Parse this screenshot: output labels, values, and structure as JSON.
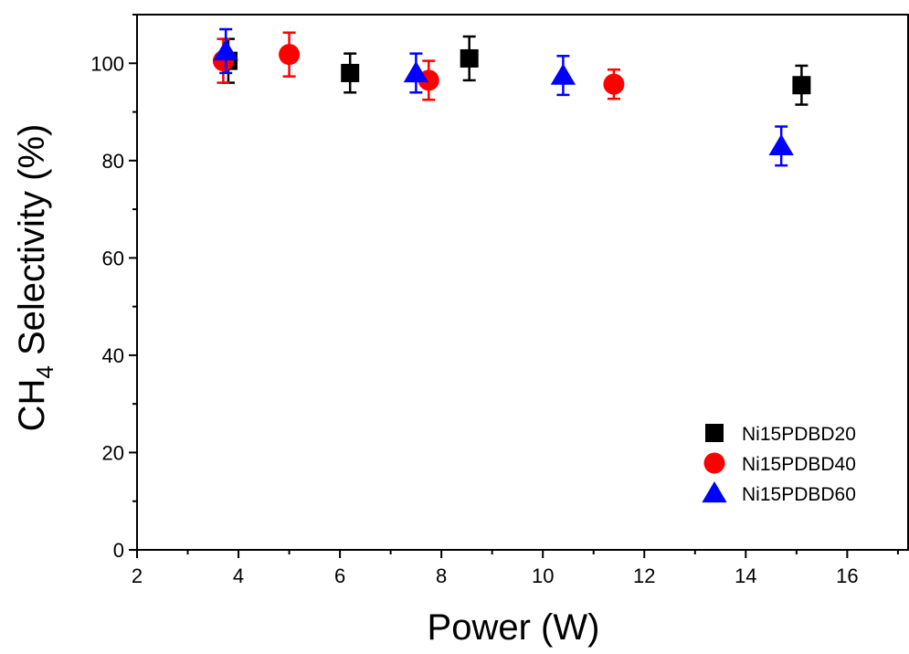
{
  "chart_data": {
    "type": "scatter",
    "xlabel": "Power (W)",
    "ylabel": {
      "prefix": "CH",
      "subscript": "4",
      "suffix": " Selectivity (%)"
    },
    "xlim": [
      2,
      17.2
    ],
    "ylim": [
      0,
      110
    ],
    "xticks": [
      2,
      4,
      6,
      8,
      10,
      12,
      14,
      16
    ],
    "yticks": [
      0,
      20,
      40,
      60,
      80,
      100
    ],
    "grid": false,
    "legend_position": "bottom-right",
    "series": [
      {
        "name": "Ni15PDBD20",
        "marker": "square",
        "color": "#000000",
        "points": [
          {
            "x": 3.8,
            "y": 100.5,
            "err": 4.5
          },
          {
            "x": 6.2,
            "y": 98.0,
            "err": 4.0
          },
          {
            "x": 8.55,
            "y": 101.0,
            "err": 4.5
          },
          {
            "x": 15.1,
            "y": 95.5,
            "err": 4.0
          }
        ]
      },
      {
        "name": "Ni15PDBD40",
        "marker": "circle",
        "color": "#ff0000",
        "points": [
          {
            "x": 3.7,
            "y": 100.5,
            "err": 4.5
          },
          {
            "x": 5.0,
            "y": 101.8,
            "err": 4.5
          },
          {
            "x": 7.75,
            "y": 96.5,
            "err": 4.0
          },
          {
            "x": 11.4,
            "y": 95.7,
            "err": 3.0
          }
        ]
      },
      {
        "name": "Ni15PDBD60",
        "marker": "triangle",
        "color": "#0000ff",
        "points": [
          {
            "x": 3.75,
            "y": 102.5,
            "err": 4.5
          },
          {
            "x": 7.5,
            "y": 98.0,
            "err": 4.0
          },
          {
            "x": 10.4,
            "y": 97.5,
            "err": 4.0
          },
          {
            "x": 14.7,
            "y": 83.0,
            "err": 4.0
          }
        ]
      }
    ]
  }
}
